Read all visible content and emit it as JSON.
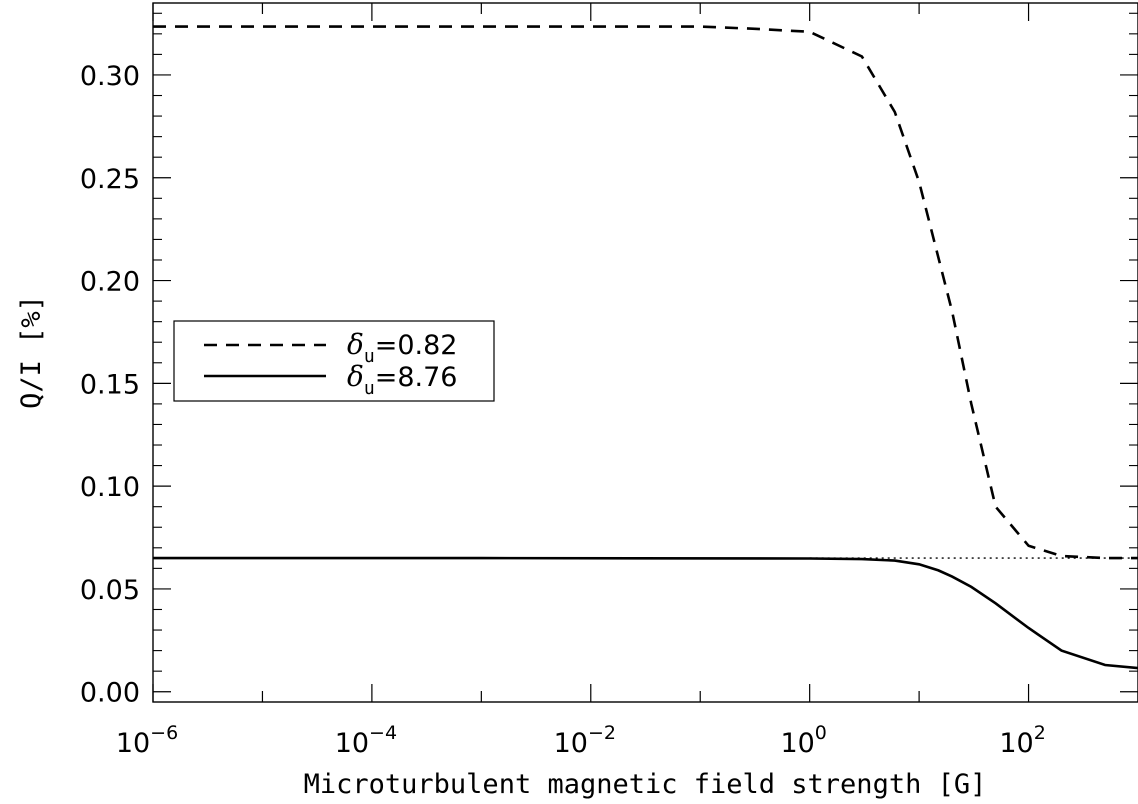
{
  "chart_data": {
    "type": "line",
    "xlabel": "Microturbulent magnetic field strength [G]",
    "ylabel": "Q/I [%]",
    "xscale": "log",
    "xlim": [
      1e-06,
      1000
    ],
    "ylim": [
      -0.005,
      0.335
    ],
    "x_ticks": [
      {
        "value": 1e-06,
        "base": "10",
        "exp": "−6"
      },
      {
        "value": 0.0001,
        "base": "10",
        "exp": "−4"
      },
      {
        "value": 0.01,
        "base": "10",
        "exp": "−2"
      },
      {
        "value": 1,
        "base": "10",
        "exp": "0"
      },
      {
        "value": 100,
        "base": "10",
        "exp": "2"
      }
    ],
    "y_ticks": [
      {
        "value": 0.0,
        "label": "0.00"
      },
      {
        "value": 0.05,
        "label": "0.05"
      },
      {
        "value": 0.1,
        "label": "0.10"
      },
      {
        "value": 0.15,
        "label": "0.15"
      },
      {
        "value": 0.2,
        "label": "0.20"
      },
      {
        "value": 0.25,
        "label": "0.25"
      },
      {
        "value": 0.3,
        "label": "0.30"
      }
    ],
    "legend_position": "center-left",
    "series": [
      {
        "name": "δu=0.82",
        "symbol": "δ",
        "subscript": "u",
        "value_text": "=0.82",
        "style": "dashed",
        "color": "#000000",
        "x": [
          1e-06,
          0.001,
          0.1,
          0.3,
          1,
          3,
          6,
          10,
          20,
          30,
          50,
          100,
          200,
          500,
          1000
        ],
        "y": [
          0.3235,
          0.3235,
          0.3235,
          0.3225,
          0.321,
          0.309,
          0.282,
          0.248,
          0.185,
          0.14,
          0.09,
          0.071,
          0.066,
          0.065,
          0.065
        ]
      },
      {
        "name": "δu=8.76",
        "symbol": "δ",
        "subscript": "u",
        "value_text": "=8.76",
        "style": "solid",
        "color": "#000000",
        "x": [
          1e-06,
          0.001,
          1,
          3,
          6,
          10,
          15,
          20,
          30,
          50,
          100,
          200,
          500,
          1000
        ],
        "y": [
          0.065,
          0.065,
          0.0648,
          0.0645,
          0.0638,
          0.062,
          0.059,
          0.056,
          0.051,
          0.043,
          0.031,
          0.02,
          0.013,
          0.0115
        ]
      },
      {
        "style": "dotted",
        "color": "#000000",
        "x": [
          1,
          1000
        ],
        "y": [
          0.065,
          0.065
        ]
      }
    ]
  }
}
